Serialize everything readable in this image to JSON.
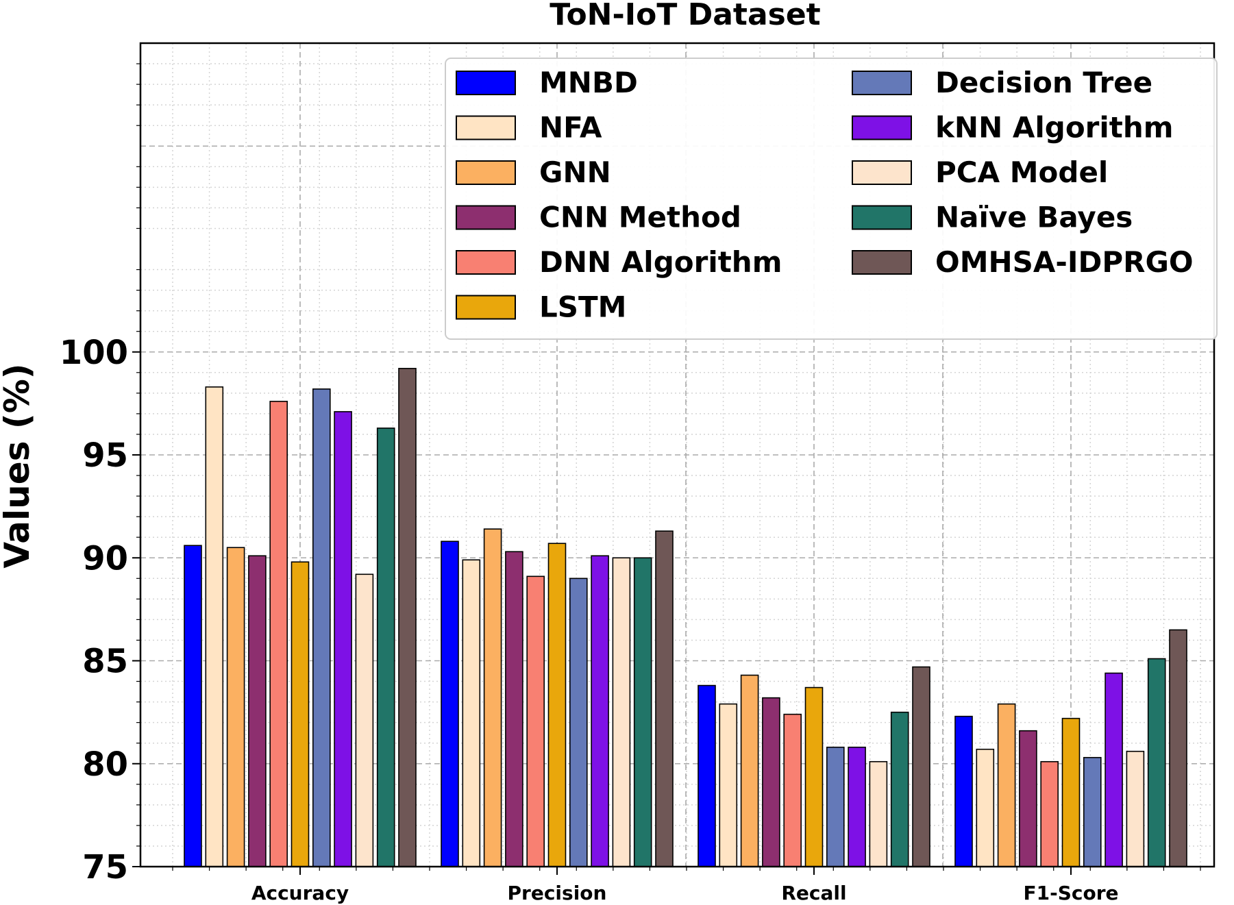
{
  "chart_data": {
    "type": "bar",
    "title": "ToN-IoT Dataset",
    "xlabel": "",
    "ylabel": "Values (%)",
    "ylim": [
      75,
      115
    ],
    "yticks": [
      75,
      80,
      85,
      90,
      95,
      100
    ],
    "grid": true,
    "legend_placement": "top-right",
    "legend_columns": 2,
    "categories": [
      "Accuracy",
      "Precision",
      "Recall",
      "F1-Score"
    ],
    "series": [
      {
        "name": "MNBD",
        "color": "#0000ff",
        "values": [
          90.6,
          90.8,
          83.8,
          82.3
        ]
      },
      {
        "name": "NFA",
        "color": "#ffe4c4",
        "values": [
          98.3,
          89.9,
          82.9,
          80.7
        ]
      },
      {
        "name": "GNN",
        "color": "#fbb061",
        "values": [
          90.5,
          91.4,
          84.3,
          82.9
        ]
      },
      {
        "name": "CNN Method",
        "color": "#8d2f6f",
        "values": [
          90.1,
          90.3,
          83.2,
          81.6
        ]
      },
      {
        "name": "DNN Algorithm",
        "color": "#f88072",
        "values": [
          97.6,
          89.1,
          82.4,
          80.1
        ]
      },
      {
        "name": "LSTM",
        "color": "#e9a70c",
        "values": [
          89.8,
          90.7,
          83.7,
          82.2
        ]
      },
      {
        "name": "Decision Tree",
        "color": "#6479b8",
        "values": [
          98.2,
          89.0,
          80.8,
          80.3
        ]
      },
      {
        "name": "kNN Algorithm",
        "color": "#7e11e6",
        "values": [
          97.1,
          90.1,
          80.8,
          84.4
        ]
      },
      {
        "name": "PCA Model",
        "color": "#fde4cc",
        "values": [
          89.2,
          90.0,
          80.1,
          80.6
        ]
      },
      {
        "name": "Naïve Bayes",
        "color": "#217568",
        "values": [
          96.3,
          90.0,
          82.5,
          85.1
        ]
      },
      {
        "name": "OMHSA-IDPRGO",
        "color": "#6f5756",
        "values": [
          99.2,
          91.3,
          84.7,
          86.5
        ]
      }
    ]
  }
}
